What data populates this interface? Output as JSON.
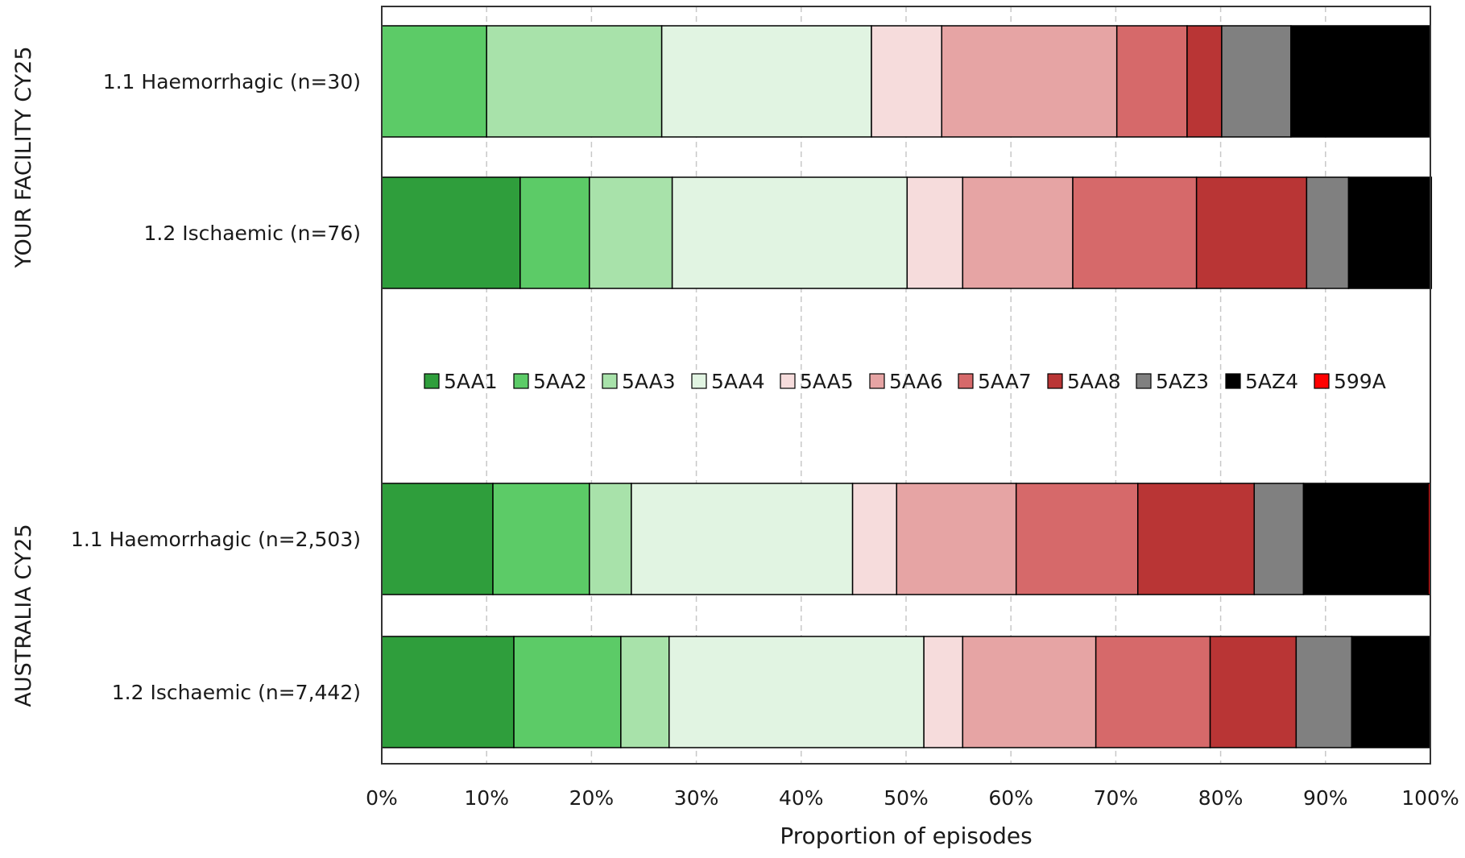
{
  "chart_data": {
    "type": "bar",
    "orientation": "horizontal",
    "stacked": true,
    "xlabel": "Proportion of episodes",
    "xlim": [
      0,
      100
    ],
    "x_ticks": [
      "0%",
      "10%",
      "20%",
      "30%",
      "40%",
      "50%",
      "60%",
      "70%",
      "80%",
      "90%",
      "100%"
    ],
    "grid": true,
    "legend_position": "center",
    "groups": [
      {
        "label": "YOUR FACILITY CY25",
        "categories": [
          "1.1 Haemorrhagic (n=30)",
          "1.2 Ischaemic (n=76)"
        ]
      },
      {
        "label": "AUSTRALIA CY25",
        "categories": [
          "1.1 Haemorrhagic (n=2,503)",
          "1.2 Ischaemic (n=7,442)"
        ]
      }
    ],
    "categories": [
      "1.1 Haemorrhagic (n=30)",
      "1.2 Ischaemic (n=76)",
      "1.1 Haemorrhagic (n=2,503)",
      "1.2 Ischaemic (n=7,442)"
    ],
    "series": [
      {
        "name": "5AA1",
        "color": "#2f9e3c",
        "values": [
          0.0,
          13.2,
          10.6,
          12.6
        ]
      },
      {
        "name": "5AA2",
        "color": "#5ccb67",
        "values": [
          10.0,
          6.6,
          9.2,
          10.2
        ]
      },
      {
        "name": "5AA3",
        "color": "#a8e2aa",
        "values": [
          16.7,
          7.9,
          4.0,
          4.6
        ]
      },
      {
        "name": "5AA4",
        "color": "#e1f4e2",
        "values": [
          20.0,
          22.4,
          21.1,
          24.3
        ]
      },
      {
        "name": "5AA5",
        "color": "#f6dcdc",
        "values": [
          6.7,
          5.3,
          4.2,
          3.7
        ]
      },
      {
        "name": "5AA6",
        "color": "#e6a4a4",
        "values": [
          16.7,
          10.5,
          11.4,
          12.7
        ]
      },
      {
        "name": "5AA7",
        "color": "#d6696a",
        "values": [
          6.7,
          11.8,
          11.6,
          10.9
        ]
      },
      {
        "name": "5AA8",
        "color": "#b93535",
        "values": [
          3.3,
          10.5,
          11.1,
          8.2
        ]
      },
      {
        "name": "5AZ3",
        "color": "#808080",
        "values": [
          6.6,
          4.0,
          4.7,
          5.3
        ]
      },
      {
        "name": "5AZ4",
        "color": "#000000",
        "values": [
          13.3,
          7.9,
          11.9,
          7.5
        ]
      },
      {
        "name": "599A",
        "color": "#ff0000",
        "values": [
          0.0,
          0.0,
          0.2,
          0.0
        ]
      }
    ]
  }
}
